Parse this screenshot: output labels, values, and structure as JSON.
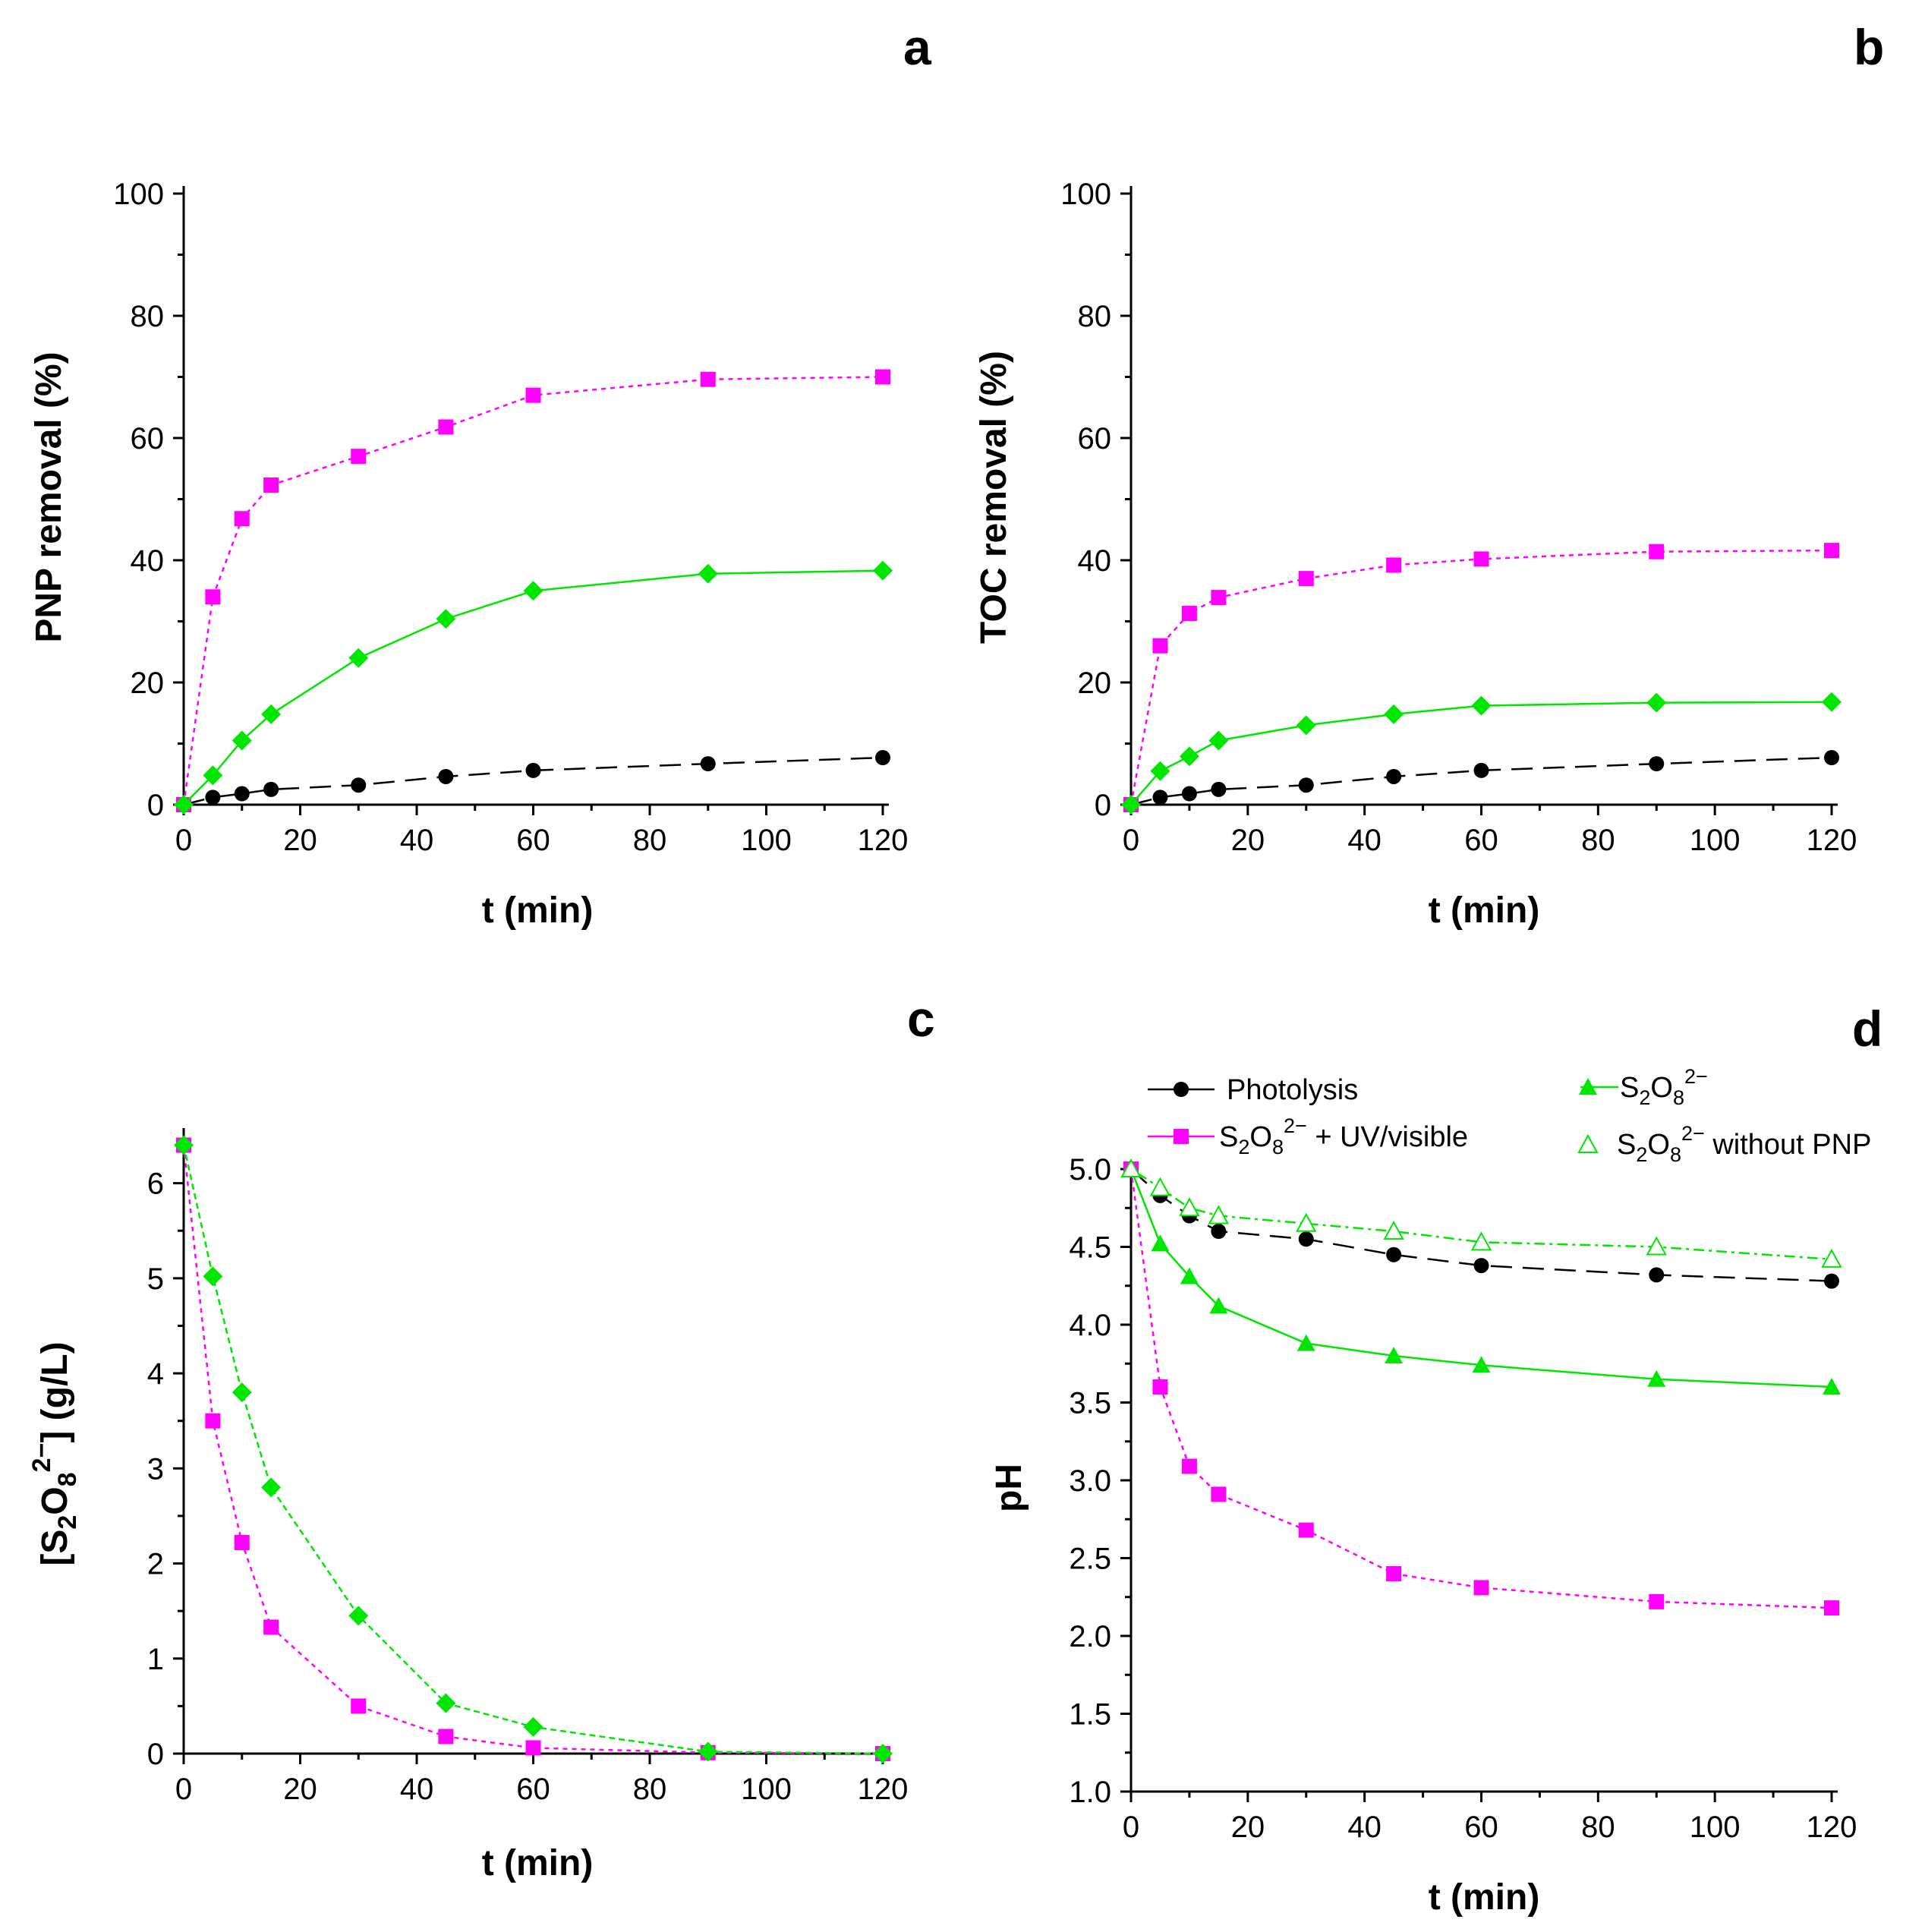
{
  "colors": {
    "photolysis": "#000000",
    "uv_visible": "#ff00ff",
    "persulfate": "#00e600"
  },
  "legend": {
    "photolysis": "Photolysis",
    "uv_visible_pre": "S",
    "uv_visible_sub1": "2",
    "uv_visible_mid": "O",
    "uv_visible_sub2": "8",
    "uv_visible_sup": "2−",
    "uv_visible_post": " + UV/visible",
    "persulfate_pre": "S",
    "persulfate_sub1": "2",
    "persulfate_mid": "O",
    "persulfate_sub2": "8",
    "persulfate_sup": "2−",
    "no_pnp_pre": "S",
    "no_pnp_sub1": "2",
    "no_pnp_mid": "O",
    "no_pnp_sub2": "8",
    "no_pnp_sup": "2−",
    "no_pnp_post": " without PNP"
  },
  "chart_data": [
    {
      "id": "a",
      "type": "line",
      "letter": "a",
      "xlabel": "t (min)",
      "ylabel": "PNP removal (%)",
      "xlim": [
        0,
        120
      ],
      "ylim": [
        0,
        100
      ],
      "xticks": [
        0,
        20,
        40,
        60,
        80,
        100,
        120
      ],
      "yticks": [
        0,
        20,
        40,
        60,
        80,
        100
      ],
      "yticklabels": [
        "0",
        "20",
        "40",
        "60",
        "80",
        "100"
      ],
      "series": [
        {
          "name": "Photolysis",
          "key": "photolysis",
          "marker": "circle",
          "x": [
            0,
            5,
            10,
            15,
            30,
            45,
            60,
            90,
            120
          ],
          "y": [
            0,
            1.2,
            1.8,
            2.5,
            3.2,
            4.6,
            5.6,
            6.7,
            7.7
          ]
        },
        {
          "name": "S2O8 2- + UV/visible",
          "key": "uv_visible",
          "marker": "square",
          "x": [
            0,
            5,
            10,
            15,
            30,
            45,
            60,
            90,
            120
          ],
          "y": [
            0,
            34,
            46.8,
            52.3,
            57,
            61.8,
            67,
            69.6,
            70
          ]
        },
        {
          "name": "S2O8 2-",
          "key": "persulfate",
          "marker": "diamond",
          "x": [
            0,
            5,
            10,
            15,
            30,
            45,
            60,
            90,
            120
          ],
          "y": [
            0,
            4.8,
            10.5,
            14.8,
            24,
            30.4,
            35,
            37.8,
            38.3
          ]
        }
      ]
    },
    {
      "id": "b",
      "type": "line",
      "letter": "b",
      "xlabel": "t (min)",
      "ylabel": "TOC removal (%)",
      "xlim": [
        0,
        120
      ],
      "ylim": [
        0,
        100
      ],
      "xticks": [
        0,
        20,
        40,
        60,
        80,
        100,
        120
      ],
      "yticks": [
        0,
        20,
        40,
        60,
        80,
        100
      ],
      "yticklabels": [
        "0",
        "20",
        "40",
        "60",
        "80",
        "100"
      ],
      "series": [
        {
          "name": "Photolysis",
          "key": "photolysis",
          "marker": "circle",
          "x": [
            0,
            5,
            10,
            15,
            30,
            45,
            60,
            90,
            120
          ],
          "y": [
            0,
            1.2,
            1.8,
            2.5,
            3.2,
            4.6,
            5.6,
            6.7,
            7.7
          ]
        },
        {
          "name": "S2O8 2- + UV/visible",
          "key": "uv_visible",
          "marker": "square",
          "x": [
            0,
            5,
            10,
            15,
            30,
            45,
            60,
            90,
            120
          ],
          "y": [
            0,
            26,
            31.3,
            33.9,
            37,
            39.2,
            40.2,
            41.4,
            41.6
          ]
        },
        {
          "name": "S2O8 2-",
          "key": "persulfate",
          "marker": "diamond",
          "x": [
            0,
            5,
            10,
            15,
            30,
            45,
            60,
            90,
            120
          ],
          "y": [
            0,
            5.5,
            7.9,
            10.5,
            13,
            14.8,
            16.2,
            16.7,
            16.8
          ]
        }
      ]
    },
    {
      "id": "c",
      "type": "line",
      "letter": "c",
      "xlabel": "t (min)",
      "ylabel_pre": "[S",
      "ylabel_sub1": "2",
      "ylabel_mid": "O",
      "ylabel_sub2": "8",
      "ylabel_sup": "2−",
      "ylabel_post": "] (g/L)",
      "xlim": [
        0,
        120
      ],
      "ylim": [
        0,
        6.5
      ],
      "xticks": [
        0,
        20,
        40,
        60,
        80,
        100,
        120
      ],
      "yticks": [
        0,
        1,
        2,
        3,
        4,
        5,
        6
      ],
      "yticklabels": [
        "0",
        "1",
        "2",
        "3",
        "4",
        "5",
        "6"
      ],
      "series": [
        {
          "name": "S2O8 2- + UV/visible",
          "key": "uv_visible",
          "marker": "square",
          "x": [
            0,
            5,
            10,
            15,
            30,
            45,
            60,
            90,
            120
          ],
          "y": [
            6.4,
            3.5,
            2.22,
            1.33,
            0.5,
            0.18,
            0.06,
            0.01,
            0
          ]
        },
        {
          "name": "S2O8 2-",
          "key": "persulfate",
          "marker": "diamond",
          "x": [
            0,
            5,
            10,
            15,
            30,
            45,
            60,
            90,
            120
          ],
          "y": [
            6.4,
            5.02,
            3.8,
            2.8,
            1.45,
            0.53,
            0.28,
            0.02,
            0
          ]
        }
      ]
    },
    {
      "id": "d",
      "type": "line",
      "letter": "d",
      "xlabel": "t (min)",
      "ylabel": "pH",
      "xlim": [
        0,
        120
      ],
      "ylim": [
        1.0,
        5.0
      ],
      "xticks": [
        0,
        20,
        40,
        60,
        80,
        100,
        120
      ],
      "yticks": [
        1.0,
        1.5,
        2.0,
        2.5,
        3.0,
        3.5,
        4.0,
        4.5,
        5.0
      ],
      "yticklabels": [
        "1.0",
        "1.5",
        "2.0",
        "2.5",
        "3.0",
        "3.5",
        "4.0",
        "4.5",
        "5.0"
      ],
      "series": [
        {
          "name": "Photolysis",
          "key": "photolysis",
          "marker": "circle",
          "x": [
            0,
            5,
            10,
            15,
            30,
            45,
            60,
            90,
            120
          ],
          "y": [
            5.0,
            4.83,
            4.7,
            4.6,
            4.55,
            4.45,
            4.38,
            4.32,
            4.28
          ]
        },
        {
          "name": "S2O8 2- + UV/visible",
          "key": "uv_visible",
          "marker": "square",
          "x": [
            0,
            5,
            10,
            15,
            30,
            45,
            60,
            90,
            120
          ],
          "y": [
            5.0,
            3.6,
            3.09,
            2.91,
            2.68,
            2.4,
            2.31,
            2.22,
            2.18
          ]
        },
        {
          "name": "S2O8 2-",
          "key": "persulfate",
          "marker": "triangle",
          "x": [
            0,
            5,
            10,
            15,
            30,
            45,
            60,
            90,
            120
          ],
          "y": [
            5.0,
            4.52,
            4.31,
            4.12,
            3.88,
            3.8,
            3.74,
            3.65,
            3.6
          ]
        },
        {
          "name": "S2O8 2- without PNP",
          "key": "persulfate",
          "marker": "triangle-open",
          "x": [
            0,
            5,
            10,
            15,
            30,
            45,
            60,
            90,
            120
          ],
          "y": [
            5.0,
            4.88,
            4.75,
            4.7,
            4.65,
            4.6,
            4.53,
            4.5,
            4.42
          ]
        }
      ]
    }
  ]
}
